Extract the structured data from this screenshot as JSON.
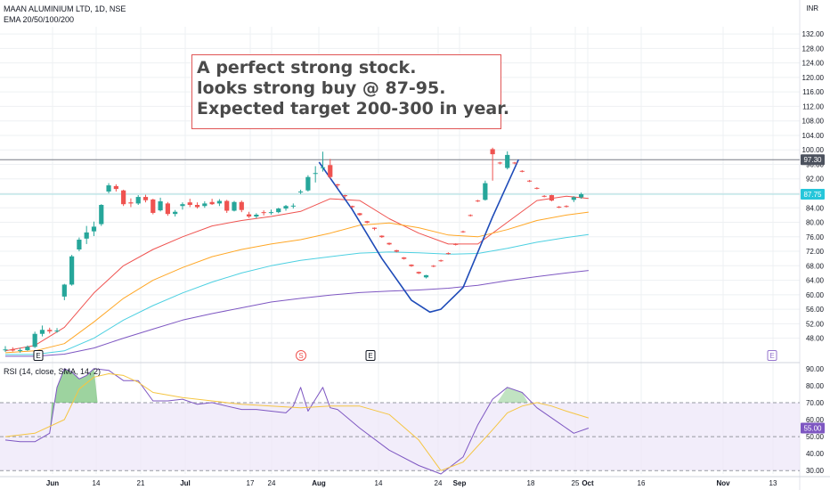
{
  "header": {
    "title": "MAAN ALUMINIUM LTD, 1D, NSE",
    "indicator": "EMA 20/50/100/200",
    "rsi_label": "RSI (14, close, SMA, 14, 2)",
    "currency": "INR"
  },
  "note": {
    "lines": [
      "A perfect strong stock.",
      "looks strong buy @ 87-95.",
      "Expected target 200-300 in year."
    ],
    "border_color": "#e05555"
  },
  "markers": [
    {
      "symbol": "E",
      "type": "earnings",
      "date": "May 30"
    },
    {
      "symbol": "S",
      "type": "split",
      "date": "Jul 27"
    },
    {
      "symbol": "E",
      "type": "earnings",
      "date": "Aug 10"
    },
    {
      "symbol": "E",
      "type": "earnings",
      "date": "Nov 20"
    }
  ],
  "chart_data": [
    {
      "type": "candlestick",
      "title": "MAAN ALUMINIUM LTD, 1D, NSE",
      "y_unit": "INR",
      "ylim": [
        42,
        134
      ],
      "yticks": [
        "132.00",
        "128.00",
        "124.00",
        "120.00",
        "116.00",
        "112.00",
        "108.00",
        "104.00",
        "100.00",
        "96.00",
        "92.00",
        "88.00",
        "84.00",
        "80.00",
        "76.00",
        "72.00",
        "68.00",
        "64.00",
        "60.00",
        "56.00",
        "52.00",
        "48.00"
      ],
      "xticks": [
        "Jun",
        "14",
        "21",
        "Jul",
        "17",
        "24",
        "Aug",
        "14",
        "24",
        "Sep",
        "18",
        "25",
        "Oct",
        "16",
        "Nov",
        "13"
      ],
      "horizontal_lines": [
        {
          "value": 97.3,
          "label": "97.30"
        },
        {
          "value": 87.75,
          "label": "87.75"
        }
      ],
      "last_price": 87.75,
      "candles": [
        {
          "o": 44.8,
          "h": 45.8,
          "l": 44.2,
          "c": 44.9
        },
        {
          "o": 44.9,
          "h": 45.5,
          "l": 44.3,
          "c": 44.6
        },
        {
          "o": 44.6,
          "h": 45.3,
          "l": 44.0,
          "c": 44.7
        },
        {
          "o": 44.7,
          "h": 46.0,
          "l": 44.5,
          "c": 45.6
        },
        {
          "o": 45.6,
          "h": 49.8,
          "l": 45.3,
          "c": 49.2
        },
        {
          "o": 49.2,
          "h": 51.5,
          "l": 48.5,
          "c": 50.3
        },
        {
          "o": 50.3,
          "h": 50.9,
          "l": 49.3,
          "c": 49.9
        },
        {
          "o": 49.9,
          "h": 50.8,
          "l": 49.5,
          "c": 50.1
        },
        {
          "o": 59.5,
          "h": 63.0,
          "l": 58.5,
          "c": 62.8
        },
        {
          "o": 62.8,
          "h": 71.0,
          "l": 62.5,
          "c": 70.6
        },
        {
          "o": 72.5,
          "h": 75.8,
          "l": 72.0,
          "c": 75.2
        },
        {
          "o": 75.5,
          "h": 79.0,
          "l": 74.0,
          "c": 77.2
        },
        {
          "o": 77.5,
          "h": 80.2,
          "l": 76.2,
          "c": 78.8
        },
        {
          "o": 79.5,
          "h": 85.0,
          "l": 79.0,
          "c": 84.8
        },
        {
          "o": 88.5,
          "h": 90.8,
          "l": 88.0,
          "c": 90.2
        },
        {
          "o": 90.0,
          "h": 90.5,
          "l": 88.5,
          "c": 89.2
        },
        {
          "o": 88.8,
          "h": 89.0,
          "l": 84.5,
          "c": 85.0
        },
        {
          "o": 85.5,
          "h": 86.6,
          "l": 84.2,
          "c": 85.2
        },
        {
          "o": 85.2,
          "h": 87.5,
          "l": 84.8,
          "c": 87.0
        },
        {
          "o": 87.0,
          "h": 87.6,
          "l": 85.5,
          "c": 86.1
        },
        {
          "o": 86.3,
          "h": 86.5,
          "l": 82.2,
          "c": 82.6
        },
        {
          "o": 83.3,
          "h": 86.8,
          "l": 83.0,
          "c": 85.8
        },
        {
          "o": 85.2,
          "h": 85.6,
          "l": 81.8,
          "c": 82.3
        },
        {
          "o": 82.3,
          "h": 83.4,
          "l": 81.6,
          "c": 82.9
        },
        {
          "o": 84.5,
          "h": 85.5,
          "l": 83.5,
          "c": 85.0
        },
        {
          "o": 85.5,
          "h": 86.5,
          "l": 84.2,
          "c": 84.8
        },
        {
          "o": 84.8,
          "h": 85.5,
          "l": 83.8,
          "c": 84.2
        },
        {
          "o": 84.5,
          "h": 85.8,
          "l": 84.0,
          "c": 85.2
        },
        {
          "o": 85.6,
          "h": 86.5,
          "l": 84.8,
          "c": 85.0
        },
        {
          "o": 85.2,
          "h": 86.4,
          "l": 84.5,
          "c": 85.9
        },
        {
          "o": 85.9,
          "h": 86.2,
          "l": 82.6,
          "c": 83.2
        },
        {
          "o": 83.2,
          "h": 85.9,
          "l": 83.0,
          "c": 85.6
        },
        {
          "o": 85.6,
          "h": 86.0,
          "l": 82.8,
          "c": 83.4
        },
        {
          "o": 82.2,
          "h": 82.9,
          "l": 81.2,
          "c": 81.6
        },
        {
          "o": 81.6,
          "h": 82.5,
          "l": 81.1,
          "c": 82.1
        },
        {
          "o": 82.8,
          "h": 83.3,
          "l": 81.9,
          "c": 82.6
        },
        {
          "o": 82.6,
          "h": 83.5,
          "l": 82.1,
          "c": 82.8
        },
        {
          "o": 82.8,
          "h": 84.0,
          "l": 82.5,
          "c": 83.8
        },
        {
          "o": 83.8,
          "h": 84.8,
          "l": 83.2,
          "c": 84.5
        },
        {
          "o": 84.5,
          "h": 85.2,
          "l": 83.8,
          "c": 84.6
        },
        {
          "o": 88.5,
          "h": 89.0,
          "l": 87.8,
          "c": 88.5
        },
        {
          "o": 88.8,
          "h": 93.0,
          "l": 88.5,
          "c": 92.5
        },
        {
          "o": 93.5,
          "h": 95.5,
          "l": 91.0,
          "c": 93.6
        },
        {
          "o": 95.0,
          "h": 99.5,
          "l": 94.0,
          "c": 95.2
        },
        {
          "o": 95.8,
          "h": 97.5,
          "l": 92.0,
          "c": 92.5
        },
        {
          "o": 90.5,
          "h": 90.6,
          "l": 89.6,
          "c": 90.2
        },
        {
          "o": 87.5,
          "h": 87.6,
          "l": 86.8,
          "c": 87.2
        },
        {
          "o": 84.5,
          "h": 84.6,
          "l": 83.8,
          "c": 84.2
        },
        {
          "o": 82.5,
          "h": 82.6,
          "l": 81.8,
          "c": 82.0
        },
        {
          "o": 80.3,
          "h": 80.4,
          "l": 79.7,
          "c": 79.9
        },
        {
          "o": 78.5,
          "h": 78.6,
          "l": 77.8,
          "c": 78.2
        },
        {
          "o": 76.3,
          "h": 76.4,
          "l": 75.7,
          "c": 75.9
        },
        {
          "o": 74.3,
          "h": 74.4,
          "l": 73.7,
          "c": 73.9
        },
        {
          "o": 72.3,
          "h": 72.4,
          "l": 71.7,
          "c": 71.9
        },
        {
          "o": 70.3,
          "h": 70.4,
          "l": 69.7,
          "c": 69.9
        },
        {
          "o": 68.3,
          "h": 68.4,
          "l": 67.7,
          "c": 67.9
        },
        {
          "o": 66.3,
          "h": 66.4,
          "l": 65.7,
          "c": 65.9
        },
        {
          "o": 64.8,
          "h": 65.5,
          "l": 64.5,
          "c": 65.4
        },
        {
          "o": 68.0,
          "h": 68.2,
          "l": 67.6,
          "c": 67.8
        },
        {
          "o": 69.5,
          "h": 69.7,
          "l": 69.1,
          "c": 69.3
        },
        {
          "o": 71.5,
          "h": 71.7,
          "l": 71.1,
          "c": 71.3
        },
        {
          "o": 74.0,
          "h": 74.2,
          "l": 73.6,
          "c": 73.8
        },
        {
          "o": 77.5,
          "h": 77.7,
          "l": 77.1,
          "c": 77.3
        },
        {
          "o": 82.0,
          "h": 82.2,
          "l": 81.6,
          "c": 81.8
        },
        {
          "o": 86.0,
          "h": 86.2,
          "l": 85.6,
          "c": 85.8
        },
        {
          "o": 86.2,
          "h": 91.5,
          "l": 86.0,
          "c": 90.8
        },
        {
          "o": 100.2,
          "h": 100.6,
          "l": 91.5,
          "c": 98.8
        },
        {
          "o": 96.5,
          "h": 96.7,
          "l": 96.0,
          "c": 96.3
        },
        {
          "o": 95.0,
          "h": 99.6,
          "l": 94.6,
          "c": 98.6
        },
        {
          "o": 96.5,
          "h": 96.7,
          "l": 96.0,
          "c": 96.4
        },
        {
          "o": 94.2,
          "h": 94.4,
          "l": 93.8,
          "c": 94.0
        },
        {
          "o": 91.5,
          "h": 91.7,
          "l": 91.1,
          "c": 91.3
        },
        {
          "o": 89.5,
          "h": 89.7,
          "l": 89.1,
          "c": 89.3
        },
        {
          "o": 87.3,
          "h": 87.5,
          "l": 86.9,
          "c": 87.1
        },
        {
          "o": 87.5,
          "h": 87.6,
          "l": 85.8,
          "c": 86.0
        },
        {
          "o": 84.3,
          "h": 84.5,
          "l": 83.9,
          "c": 84.1
        },
        {
          "o": 84.5,
          "h": 84.7,
          "l": 84.1,
          "c": 84.3
        },
        {
          "o": 86.2,
          "h": 87.2,
          "l": 85.6,
          "c": 86.9
        },
        {
          "o": 86.9,
          "h": 88.2,
          "l": 86.5,
          "c": 87.75
        }
      ],
      "series": [
        {
          "name": "EMA 20",
          "color": "#ef5350",
          "x": [
            0,
            4,
            8,
            12,
            16,
            20,
            24,
            28,
            32,
            36,
            40,
            44,
            48,
            52,
            56,
            60,
            64,
            68,
            72,
            76,
            79
          ],
          "values": [
            44.5,
            46.0,
            51.0,
            60.5,
            68.0,
            72.5,
            76.0,
            79.0,
            80.5,
            81.6,
            83.0,
            86.5,
            86.0,
            81.0,
            77.0,
            74.0,
            74.0,
            80.0,
            86.0,
            87.2,
            86.6
          ]
        },
        {
          "name": "EMA 50",
          "color": "#ffa726",
          "x": [
            0,
            4,
            8,
            12,
            16,
            20,
            24,
            28,
            32,
            36,
            40,
            44,
            48,
            52,
            56,
            60,
            64,
            68,
            72,
            76,
            79
          ],
          "values": [
            44.0,
            44.5,
            46.5,
            52.5,
            59.0,
            64.0,
            67.5,
            70.5,
            72.5,
            74.0,
            75.2,
            77.0,
            79.2,
            79.8,
            78.5,
            76.5,
            76.0,
            78.0,
            80.5,
            82.0,
            82.8
          ]
        },
        {
          "name": "EMA 100",
          "color": "#4dd0e1",
          "x": [
            0,
            4,
            8,
            12,
            16,
            20,
            24,
            28,
            32,
            36,
            40,
            44,
            48,
            52,
            56,
            60,
            64,
            68,
            72,
            76,
            79
          ],
          "values": [
            43.5,
            43.5,
            44.5,
            48.0,
            53.0,
            57.0,
            60.5,
            63.5,
            66.0,
            68.0,
            69.5,
            70.5,
            71.5,
            71.8,
            71.6,
            71.2,
            71.4,
            72.8,
            74.5,
            75.8,
            76.6
          ]
        },
        {
          "name": "EMA 200",
          "color": "#7e57c2",
          "x": [
            0,
            4,
            8,
            12,
            16,
            20,
            24,
            28,
            32,
            36,
            40,
            44,
            48,
            52,
            56,
            60,
            64,
            68,
            72,
            76,
            79
          ],
          "values": [
            43.0,
            43.0,
            43.6,
            45.3,
            48.0,
            50.5,
            53.0,
            54.8,
            56.4,
            58.0,
            59.0,
            59.9,
            60.6,
            61.0,
            61.3,
            61.8,
            62.6,
            63.9,
            65.0,
            66.0,
            66.7
          ]
        },
        {
          "name": "",
          "color": "#1e4bb8",
          "x": [
            42.5,
            47,
            51,
            55,
            57.5,
            59,
            62,
            66,
            69.5
          ],
          "values": [
            96.6,
            83.5,
            70.0,
            58.5,
            55.2,
            56.0,
            62.0,
            81.5,
            97.3
          ]
        }
      ]
    },
    {
      "type": "line",
      "title": "RSI (14, close, SMA, 14, 2)",
      "ylim": [
        28,
        92
      ],
      "yticks": [
        "90.00",
        "80.00",
        "70.00",
        "60.00",
        "50.00",
        "40.00",
        "30.00"
      ],
      "bands": [
        70,
        50,
        30
      ],
      "series": [
        {
          "name": "RSI",
          "color": "#7e57c2",
          "x": [
            0,
            2,
            4,
            6,
            7,
            8,
            9,
            10,
            11,
            12,
            14,
            16,
            18,
            20,
            22,
            24,
            26,
            28,
            30,
            32,
            34,
            36,
            38,
            39,
            40,
            41,
            42,
            43,
            44,
            45,
            48,
            52,
            56,
            59,
            62,
            64,
            66,
            68,
            70,
            72,
            75,
            77,
            79
          ],
          "values": [
            48,
            47,
            47,
            52,
            79,
            90,
            88,
            84,
            86,
            90,
            89,
            83,
            83,
            71,
            71,
            72,
            69,
            70,
            68,
            66,
            66,
            65,
            64,
            68,
            79,
            65,
            72,
            79,
            67,
            66,
            55,
            42,
            33,
            28,
            38,
            57,
            72,
            79,
            76,
            67,
            58,
            52,
            55
          ]
        },
        {
          "name": "RSI-based MA",
          "color": "#f5c542",
          "x": [
            0,
            4,
            8,
            10,
            12,
            14,
            16,
            18,
            20,
            24,
            28,
            32,
            36,
            40,
            44,
            48,
            52,
            56,
            59,
            62,
            66,
            68,
            70,
            72,
            74,
            76,
            79
          ],
          "values": [
            50,
            52,
            60,
            78,
            85,
            87,
            86,
            82,
            76,
            73,
            71,
            69,
            68,
            67,
            68,
            68,
            63,
            48,
            30,
            35,
            54,
            64,
            68,
            70,
            68,
            65,
            61
          ]
        }
      ]
    }
  ],
  "colors": {
    "up": "#26a69a",
    "down": "#ef5350",
    "grid": "#eef0f3",
    "axis_text": "#131722"
  }
}
